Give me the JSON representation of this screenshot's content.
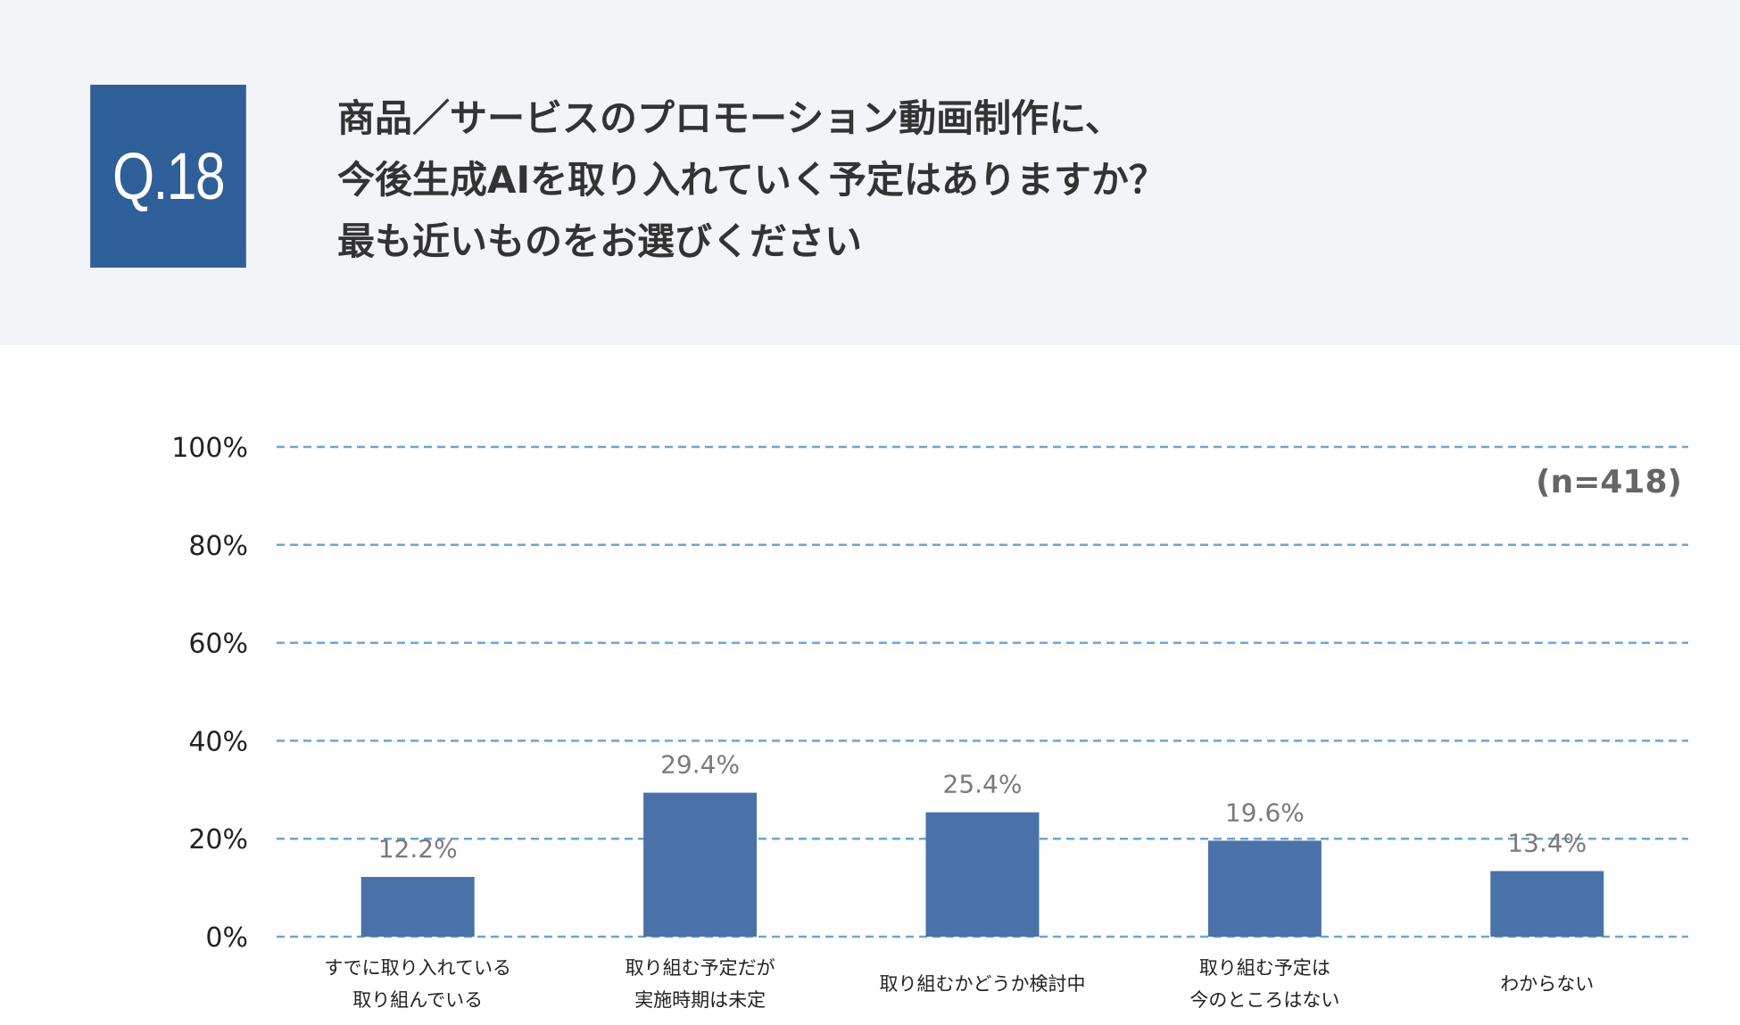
{
  "question": {
    "number": "Q.18",
    "lines": [
      "商品／サービスのプロモーション動画制作に、",
      "今後生成AIを取り入れていく予定はありますか？",
      "最も近いものをお選びください"
    ]
  },
  "colors": {
    "header_bg": "#f2f4f8",
    "badge": "#2f5f98",
    "bar": "#4a72a8",
    "grid": "#6aa6d0"
  },
  "chart_data": {
    "type": "bar",
    "title": "",
    "sample_note": "(n=418)",
    "categories": [
      [
        "すでに取り入れている",
        "取り組んでいる"
      ],
      [
        "取り組む予定だが",
        "実施時期は未定"
      ],
      [
        "取り組むかどうか検討中"
      ],
      [
        "取り組む予定は",
        "今のところはない"
      ],
      [
        "わからない"
      ]
    ],
    "values": [
      12.2,
      29.4,
      25.4,
      19.6,
      13.4
    ],
    "value_labels": [
      "12.2%",
      "29.4%",
      "25.4%",
      "19.6%",
      "13.4%"
    ],
    "ylim": [
      0,
      100
    ],
    "yticks": [
      0,
      20,
      40,
      60,
      80,
      100
    ],
    "ytick_labels": [
      "0%",
      "20%",
      "40%",
      "60%",
      "80%",
      "100%"
    ],
    "grid": true,
    "grid_style": "dashed"
  }
}
